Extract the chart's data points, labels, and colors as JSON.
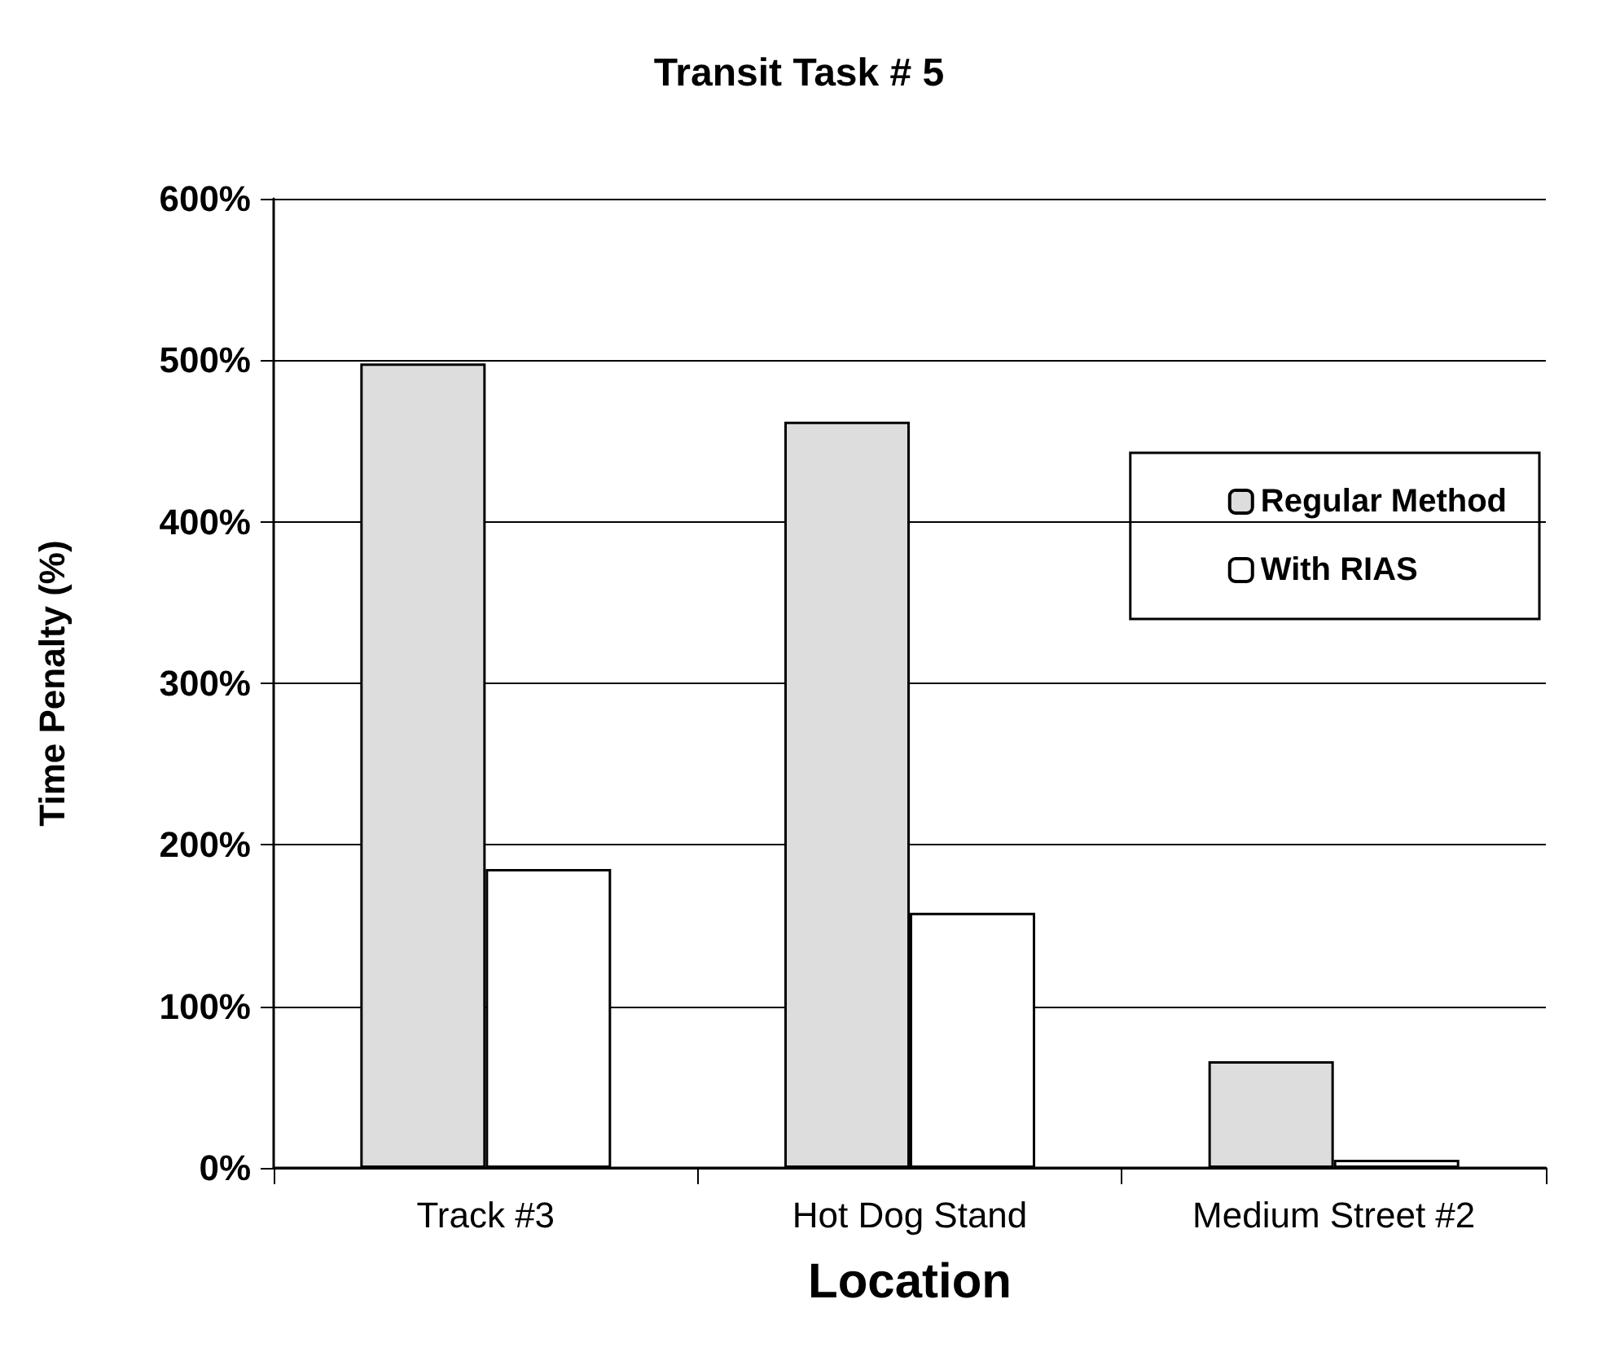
{
  "chart_data": {
    "type": "bar",
    "title": "Transit Task # 5",
    "xlabel": "Location",
    "ylabel": "Time Penalty (%)",
    "categories": [
      "Track #3",
      "Hot Dog Stand",
      "Medium Street #2"
    ],
    "series": [
      {
        "name": "Regular Method",
        "color": "#dddddd",
        "values": [
          498,
          462,
          66
        ]
      },
      {
        "name": "With RIAS",
        "color": "#ffffff",
        "values": [
          185,
          158,
          5
        ]
      }
    ],
    "ylim": [
      0,
      600
    ],
    "yticks": [
      {
        "value": 0,
        "label": "0%"
      },
      {
        "value": 100,
        "label": "100%"
      },
      {
        "value": 200,
        "label": "200%"
      },
      {
        "value": 300,
        "label": "300%"
      },
      {
        "value": 400,
        "label": "400%"
      },
      {
        "value": 500,
        "label": "500%"
      },
      {
        "value": 600,
        "label": "600%"
      }
    ],
    "grid": "y",
    "legend": "right"
  }
}
